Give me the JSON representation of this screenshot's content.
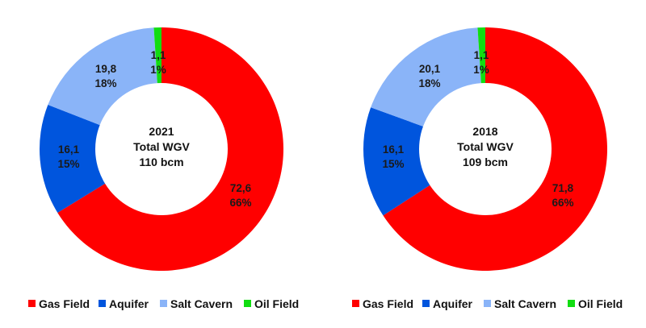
{
  "chart_data": [
    {
      "type": "pie",
      "style": "donut",
      "center_text": [
        "2021",
        "Total WGV",
        "110 bcm"
      ],
      "series": [
        {
          "name": "Gas Field",
          "value": 72.6,
          "value_label": "72,6",
          "percent_label": "66%",
          "color": "#ff0000"
        },
        {
          "name": "Aquifer",
          "value": 16.1,
          "value_label": "16,1",
          "percent_label": "15%",
          "color": "#0055dd"
        },
        {
          "name": "Salt Cavern",
          "value": 19.8,
          "value_label": "19,8",
          "percent_label": "18%",
          "color": "#8ab4f8"
        },
        {
          "name": "Oil Field",
          "value": 1.1,
          "value_label": "1,1",
          "percent_label": "1%",
          "color": "#11dd11"
        }
      ],
      "legend_placement": "bottom"
    },
    {
      "type": "pie",
      "style": "donut",
      "center_text": [
        "2018",
        "Total WGV",
        "109 bcm"
      ],
      "series": [
        {
          "name": "Gas Field",
          "value": 71.8,
          "value_label": "71,8",
          "percent_label": "66%",
          "color": "#ff0000"
        },
        {
          "name": "Aquifer",
          "value": 16.1,
          "value_label": "16,1",
          "percent_label": "15%",
          "color": "#0055dd"
        },
        {
          "name": "Salt Cavern",
          "value": 20.1,
          "value_label": "20,1",
          "percent_label": "18%",
          "color": "#8ab4f8"
        },
        {
          "name": "Oil Field",
          "value": 1.1,
          "value_label": "1,1",
          "percent_label": "1%",
          "color": "#11dd11"
        }
      ],
      "legend_placement": "bottom"
    }
  ]
}
